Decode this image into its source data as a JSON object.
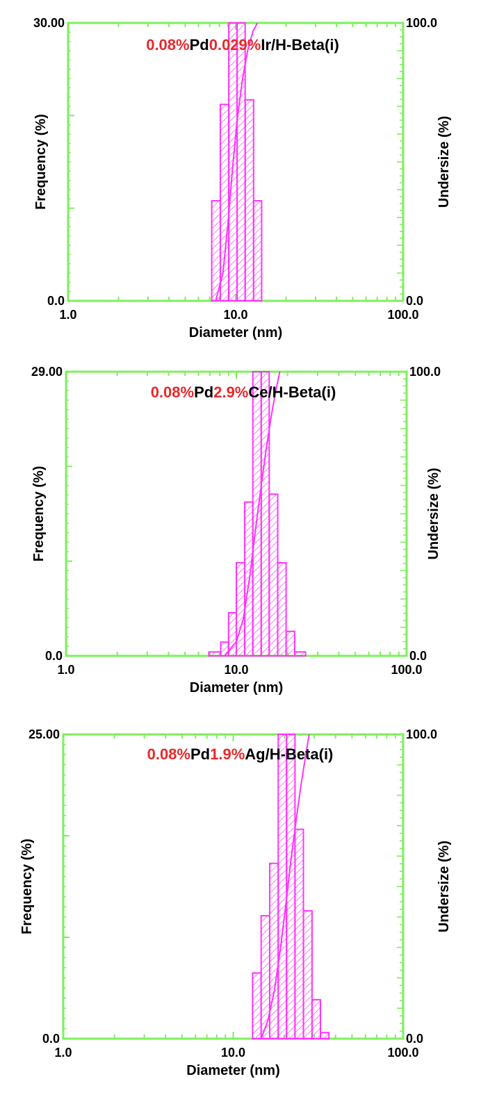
{
  "colors": {
    "frame": "#7cf05a",
    "bars": "#ff33ff",
    "title_red": "#e8282a",
    "title_black": "#000000",
    "text": "#000000"
  },
  "chart_data": [
    {
      "type": "bar",
      "title_parts": [
        {
          "text": "0.08%",
          "color": "red"
        },
        {
          "text": "Pd",
          "color": "black"
        },
        {
          "text": "0.029%",
          "color": "red"
        },
        {
          "text": "Ir/H-Beta(i)",
          "color": "black"
        }
      ],
      "xlabel": "Diameter (nm)",
      "ylabel_left": "Frequency (%)",
      "ylabel_right": "Undersize (%)",
      "xscale": "log",
      "xlim": [
        1.0,
        100.0
      ],
      "ylim_left": [
        0.0,
        30.0
      ],
      "ylim_right": [
        0.0,
        100.0
      ],
      "x_ticks": [
        "1.0",
        "10.0",
        "100.0"
      ],
      "y_left_ticks": [
        "0.0",
        "30.00"
      ],
      "y_right_ticks": [
        "0.0",
        "100.0"
      ],
      "bins": [
        {
          "from": 7.2,
          "to": 8.1,
          "value": 10.8
        },
        {
          "from": 8.1,
          "to": 9.1,
          "value": 21.2
        },
        {
          "from": 9.1,
          "to": 10.2,
          "value": 30.0
        },
        {
          "from": 10.2,
          "to": 11.4,
          "value": 30.0
        },
        {
          "from": 11.4,
          "to": 12.8,
          "value": 21.7
        },
        {
          "from": 12.8,
          "to": 14.3,
          "value": 10.8
        }
      ],
      "undersize_curve": [
        [
          7.6,
          0
        ],
        [
          8.4,
          10
        ],
        [
          9.0,
          28
        ],
        [
          9.6,
          48
        ],
        [
          10.2,
          65
        ],
        [
          11.0,
          80
        ],
        [
          11.8,
          90
        ],
        [
          12.7,
          97
        ],
        [
          13.5,
          100
        ]
      ]
    },
    {
      "type": "bar",
      "title_parts": [
        {
          "text": "0.08%",
          "color": "red"
        },
        {
          "text": "Pd",
          "color": "black"
        },
        {
          "text": "2.9%",
          "color": "red"
        },
        {
          "text": "Ce/H-Beta(i)",
          "color": "black"
        }
      ],
      "xlabel": "Diameter (nm)",
      "ylabel_left": "Frequency (%)",
      "ylabel_right": "Undersize (%)",
      "xscale": "log",
      "xlim": [
        1.0,
        100.0
      ],
      "ylim_left": [
        0.0,
        29.0
      ],
      "ylim_right": [
        0.0,
        100.0
      ],
      "x_ticks": [
        "1.0",
        "10.0",
        "100.0"
      ],
      "y_left_ticks": [
        "0.0",
        "29.00"
      ],
      "y_right_ticks": [
        "0.0",
        "100.0"
      ],
      "bins": [
        {
          "from": 6.9,
          "to": 8.1,
          "value": 0.4
        },
        {
          "from": 8.1,
          "to": 9.0,
          "value": 1.4
        },
        {
          "from": 9.0,
          "to": 10.0,
          "value": 4.4
        },
        {
          "from": 10.0,
          "to": 11.2,
          "value": 9.5
        },
        {
          "from": 11.2,
          "to": 12.5,
          "value": 15.7
        },
        {
          "from": 12.5,
          "to": 14.0,
          "value": 29.0
        },
        {
          "from": 14.0,
          "to": 15.6,
          "value": 29.0
        },
        {
          "from": 15.6,
          "to": 17.5,
          "value": 16.5
        },
        {
          "from": 17.5,
          "to": 19.6,
          "value": 9.5
        },
        {
          "from": 19.6,
          "to": 22.0,
          "value": 2.5
        },
        {
          "from": 22.0,
          "to": 25.5,
          "value": 0.4
        }
      ],
      "undersize_curve": [
        [
          8.5,
          0
        ],
        [
          10.0,
          5
        ],
        [
          11.0,
          13
        ],
        [
          12.0,
          28
        ],
        [
          13.0,
          45
        ],
        [
          14.0,
          60
        ],
        [
          15.0,
          73
        ],
        [
          16.0,
          84
        ],
        [
          17.0,
          93
        ],
        [
          18.0,
          100
        ]
      ]
    },
    {
      "type": "bar",
      "title_parts": [
        {
          "text": "0.08%",
          "color": "red"
        },
        {
          "text": "Pd",
          "color": "black"
        },
        {
          "text": "1.9%",
          "color": "red"
        },
        {
          "text": "Ag/H-Beta(i)",
          "color": "black"
        }
      ],
      "xlabel": "Diameter (nm)",
      "ylabel_left": "Frequency (%)",
      "ylabel_right": "Undersize (%)",
      "xscale": "log",
      "xlim": [
        1.0,
        100.0
      ],
      "ylim_left": [
        0.0,
        25.0
      ],
      "ylim_right": [
        0.0,
        100.0
      ],
      "x_ticks": [
        "1.0",
        "10.0",
        "100.0"
      ],
      "y_left_ticks": [
        "0.0",
        "25.00"
      ],
      "y_right_ticks": [
        "0.0",
        "100.0"
      ],
      "bins": [
        {
          "from": 13.0,
          "to": 14.6,
          "value": 5.4
        },
        {
          "from": 14.6,
          "to": 16.4,
          "value": 10.1
        },
        {
          "from": 16.4,
          "to": 18.4,
          "value": 14.4
        },
        {
          "from": 18.4,
          "to": 20.6,
          "value": 25.0
        },
        {
          "from": 20.6,
          "to": 23.1,
          "value": 25.0
        },
        {
          "from": 23.1,
          "to": 25.9,
          "value": 17.2
        },
        {
          "from": 25.9,
          "to": 29.1,
          "value": 10.5
        },
        {
          "from": 29.1,
          "to": 32.6,
          "value": 3.2
        },
        {
          "from": 32.6,
          "to": 36.6,
          "value": 0.5
        }
      ],
      "undersize_curve": [
        [
          14.6,
          0
        ],
        [
          16.0,
          6
        ],
        [
          17.5,
          16
        ],
        [
          19.0,
          30
        ],
        [
          20.5,
          45
        ],
        [
          22.0,
          60
        ],
        [
          23.5,
          72
        ],
        [
          25.0,
          83
        ],
        [
          26.5,
          92
        ],
        [
          28.0,
          100
        ]
      ]
    }
  ]
}
